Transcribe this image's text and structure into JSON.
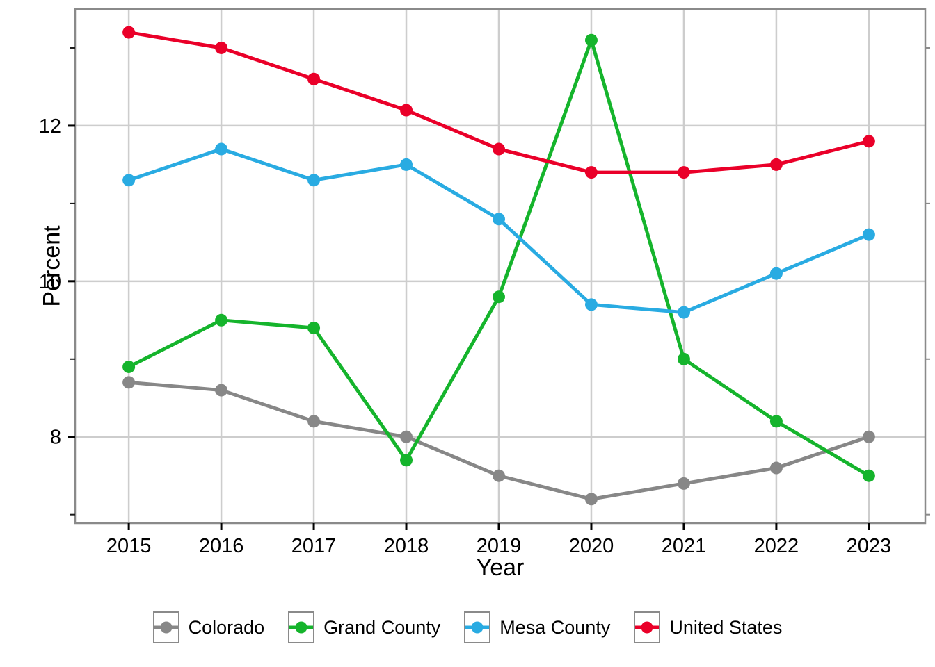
{
  "chart_data": {
    "type": "line",
    "title": "",
    "xlabel": "Year",
    "ylabel": "Percent",
    "x": [
      2015,
      2016,
      2017,
      2018,
      2019,
      2020,
      2021,
      2022,
      2023
    ],
    "series": [
      {
        "name": "Colorado",
        "color": "#878787",
        "values": [
          8.7,
          8.6,
          8.2,
          8.0,
          7.5,
          7.2,
          7.4,
          7.6,
          8.0
        ]
      },
      {
        "name": "Grand County",
        "color": "#15B42C",
        "values": [
          8.9,
          9.5,
          9.4,
          7.7,
          9.8,
          13.1,
          9.0,
          8.2,
          7.5
        ]
      },
      {
        "name": "Mesa County",
        "color": "#29ABE2",
        "values": [
          11.3,
          11.7,
          11.3,
          11.5,
          10.8,
          9.7,
          9.6,
          10.1,
          10.6
        ]
      },
      {
        "name": "United States",
        "color": "#EA0029",
        "values": [
          13.2,
          13.0,
          12.6,
          12.2,
          11.7,
          11.4,
          11.4,
          11.5,
          11.8
        ]
      }
    ],
    "y_ticks": [
      8,
      10,
      12
    ],
    "y_minor_ticks": [
      7,
      9,
      11,
      13
    ],
    "xlim": [
      2014.42,
      2023.61
    ],
    "ylim": [
      6.89,
      13.5
    ],
    "grid": true,
    "legend_position": "bottom",
    "legend_labels": [
      "Colorado",
      "Grand County",
      "Mesa County",
      "United States"
    ]
  },
  "colors": {
    "background": "#FFFFFF",
    "gridline": "#CDCDCD",
    "panel_border": "#8A8A8A",
    "major_tick": "#000000",
    "minor_tick_left": "#1A1A1A",
    "minor_tick_right": "#8A8A8A",
    "tick_label": "#000000",
    "axis_title": "#000000",
    "legend_text": "#000000",
    "legend_key_border": "#8A8A8A"
  }
}
